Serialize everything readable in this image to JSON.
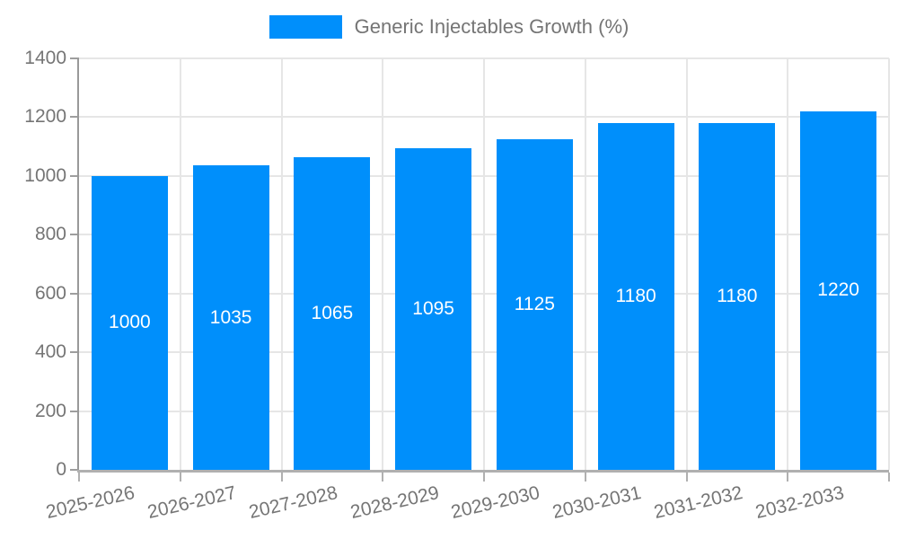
{
  "legend": {
    "label": "Generic Injectables Growth (%)"
  },
  "chart_data": {
    "type": "bar",
    "title": "",
    "categories": [
      "2025-2026",
      "2026-2027",
      "2027-2028",
      "2028-2029",
      "2029-2030",
      "2030-2031",
      "2031-2032",
      "2032-2033"
    ],
    "series": [
      {
        "name": "Generic Injectables Growth (%)",
        "values": [
          1000,
          1035,
          1065,
          1095,
          1125,
          1180,
          1180,
          1220
        ],
        "color": "#008FFB"
      }
    ],
    "data_labels": [
      1000,
      1035,
      1065,
      1095,
      1125,
      1180,
      1180,
      1220
    ],
    "xlabel": "",
    "ylabel": "",
    "ylim": [
      0,
      1400
    ],
    "ytick_step": 200,
    "yticks": [
      0,
      200,
      400,
      600,
      800,
      1000,
      1200,
      1400
    ],
    "grid": true,
    "legend_position": "top",
    "data_label_position": "inside-center"
  },
  "colors": {
    "bar": "#008FFB",
    "axis_text": "#757575",
    "gridline": "#e6e6e6",
    "axis_line": "#b0b0b0",
    "bar_label_text": "#ffffff",
    "background": "#ffffff"
  }
}
